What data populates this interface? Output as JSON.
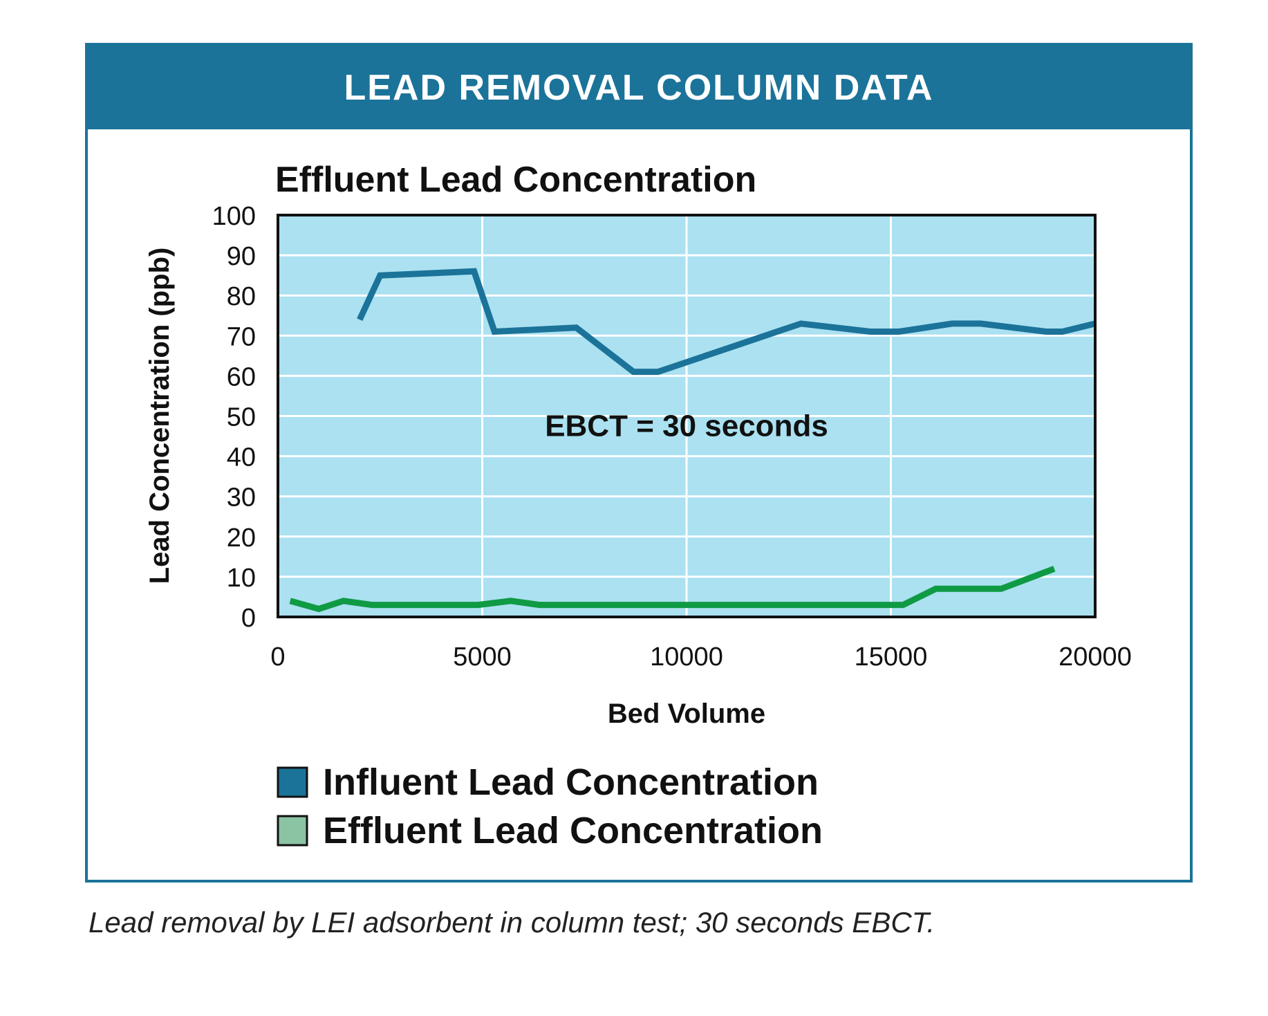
{
  "header": {
    "title": "LEAD REMOVAL COLUMN DATA"
  },
  "caption": "Lead removal by LEI adsorbent in column test; 30 seconds EBCT.",
  "colors": {
    "frame": "#1b7399",
    "plot_background": "#abe1f1",
    "gridline": "#ffffff",
    "influent_line": "#1b7399",
    "effluent_line": "#0f9a44",
    "effluent_legend_swatch": "#8bc4a3"
  },
  "chart_data": {
    "type": "line",
    "title": "Effluent Lead Concentration",
    "xlabel": "Bed Volume",
    "ylabel": "Lead Concentration (ppb)",
    "xlim": [
      0,
      20000
    ],
    "ylim": [
      0,
      100
    ],
    "x_ticks": [
      0,
      5000,
      10000,
      15000,
      20000
    ],
    "x_tick_labels": [
      "0",
      "5000",
      "10000",
      "15000",
      "20000"
    ],
    "y_ticks": [
      0,
      10,
      20,
      30,
      40,
      50,
      60,
      70,
      80,
      90,
      100
    ],
    "y_tick_labels": [
      "0",
      "10",
      "20",
      "30",
      "40",
      "50",
      "60",
      "70",
      "80",
      "90",
      "100"
    ],
    "grid": true,
    "legend_position": "bottom-left",
    "annotation": {
      "text": "EBCT = 30 seconds",
      "x": 10000,
      "y": 45
    },
    "series": [
      {
        "name": "Influent Lead Concentration",
        "x": [
          2000,
          2500,
          4800,
          5300,
          7300,
          8700,
          9300,
          12800,
          14500,
          15200,
          16500,
          17200,
          18800,
          19200,
          20000
        ],
        "y": [
          74,
          85,
          86,
          71,
          72,
          61,
          61,
          73,
          71,
          71,
          73,
          73,
          71,
          71,
          73
        ]
      },
      {
        "name": "Effluent Lead Concentration",
        "x": [
          300,
          1000,
          1600,
          2300,
          4900,
          5700,
          6400,
          15300,
          16100,
          17700,
          19000
        ],
        "y": [
          4,
          2,
          4,
          3,
          3,
          4,
          3,
          3,
          7,
          7,
          12
        ]
      }
    ]
  }
}
